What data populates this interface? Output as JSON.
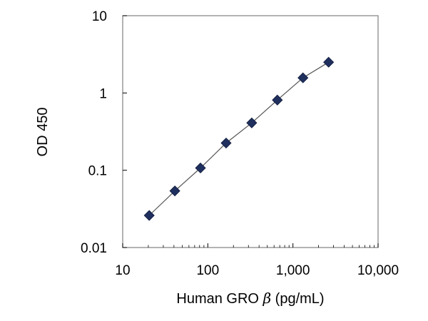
{
  "chart_data": {
    "type": "scatter",
    "title": "",
    "xlabel": "Human GRO β (pg/mL)",
    "xlabel_parts": [
      "Human GRO ",
      "β",
      " (pg/mL)"
    ],
    "ylabel": "OD 450",
    "x_scale": "log",
    "y_scale": "log",
    "xlim": [
      10,
      10000
    ],
    "ylim": [
      0.01,
      10
    ],
    "x_ticks": [
      10,
      100,
      1000,
      10000
    ],
    "x_tick_labels": [
      "10",
      "100",
      "1,000",
      "10,000"
    ],
    "y_ticks": [
      0.01,
      0.1,
      1,
      10
    ],
    "y_tick_labels": [
      "0.01",
      "0.1",
      "1",
      "10"
    ],
    "grid": false,
    "legend": "none",
    "series": [
      {
        "marker": "diamond",
        "color": "#1f2f5e",
        "line_color": "#555555",
        "x": [
          20.5,
          41,
          82,
          164,
          328,
          656,
          1312,
          2625
        ],
        "y": [
          0.026,
          0.054,
          0.107,
          0.225,
          0.41,
          0.81,
          1.57,
          2.5
        ]
      }
    ]
  }
}
